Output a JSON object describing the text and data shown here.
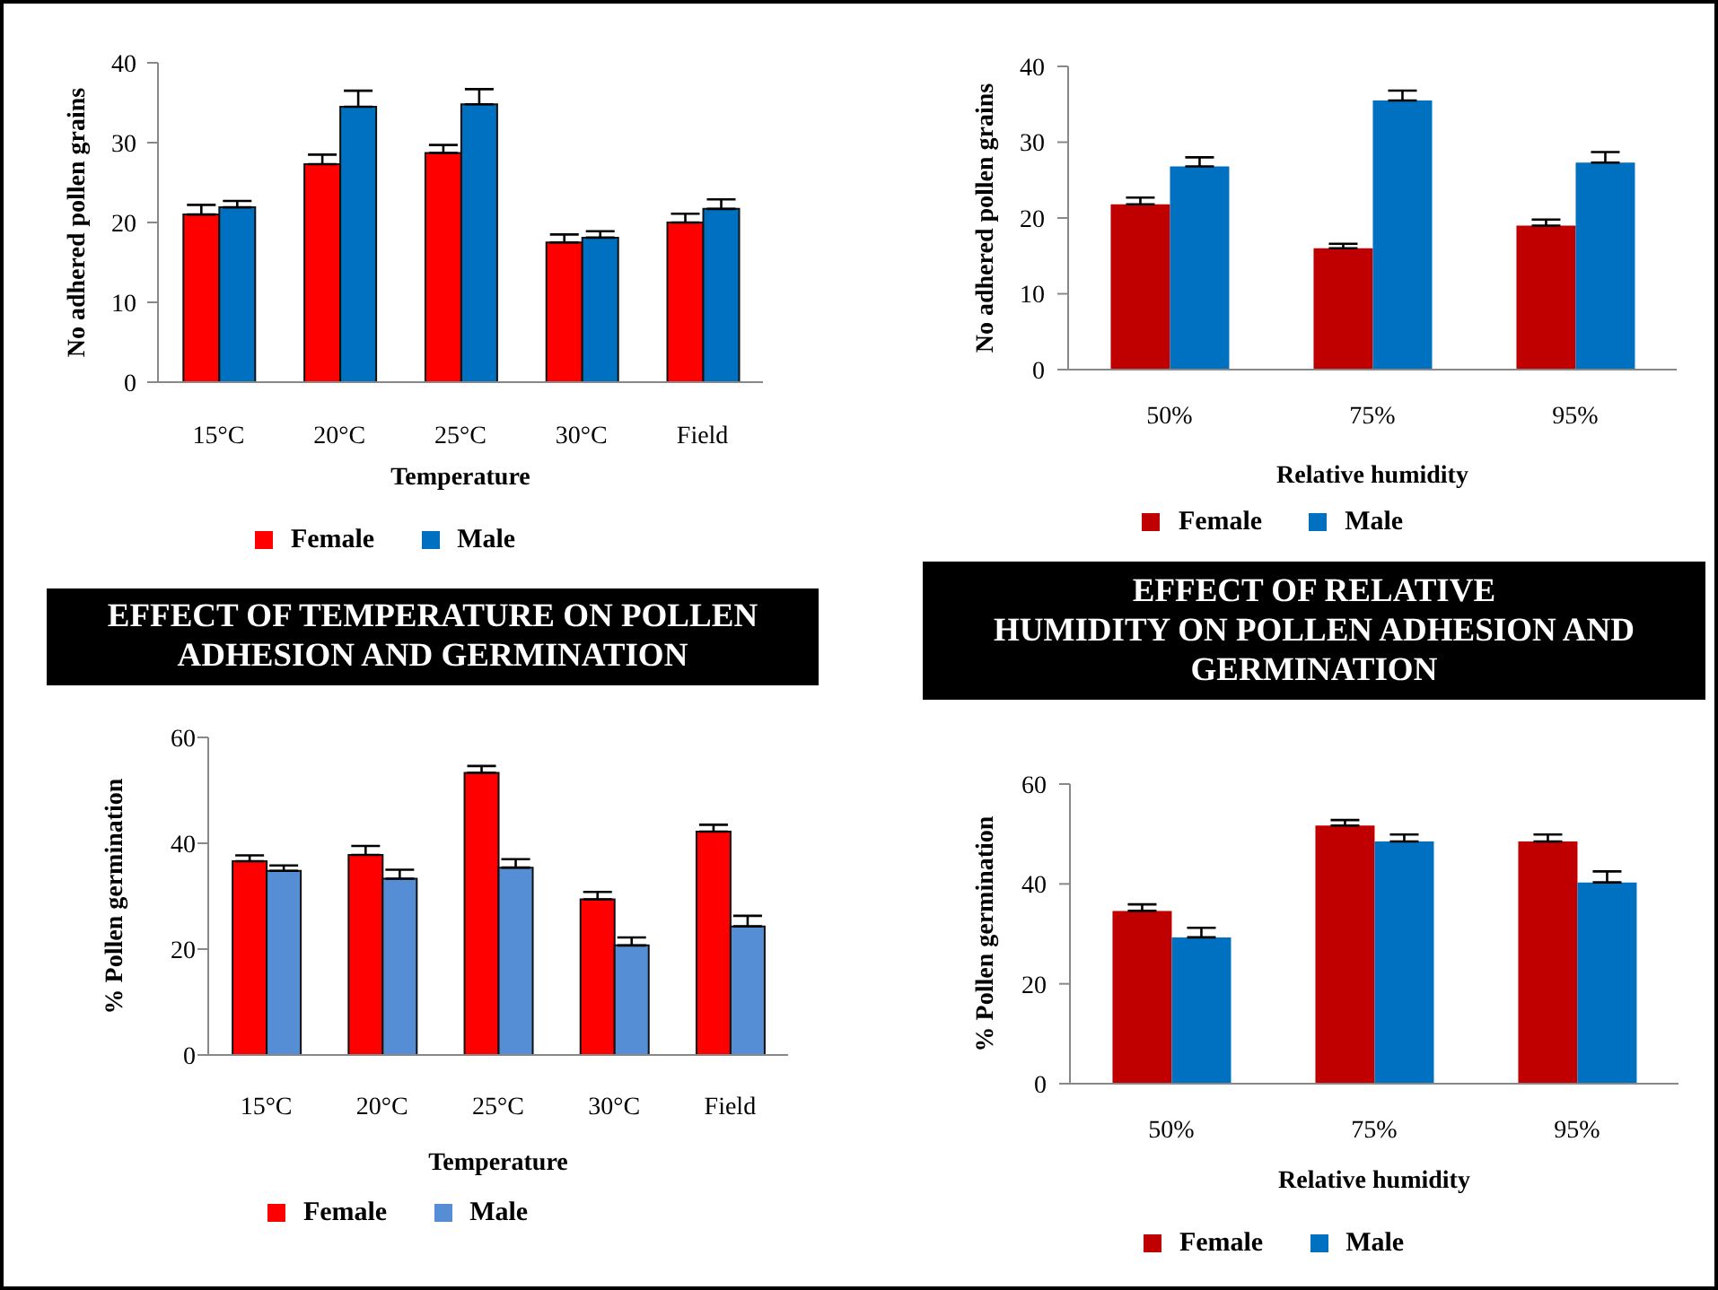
{
  "chart_data": [
    {
      "type": "bar",
      "categories": [
        "15°C",
        "20°C",
        "25°C",
        "30°C",
        "Field"
      ],
      "series": [
        {
          "name": "Female",
          "color": "#ff0000",
          "values": [
            21.0,
            27.3,
            28.7,
            17.5,
            20.0
          ],
          "errors": [
            [
              21.0,
              22.2
            ],
            [
              27.3,
              28.5
            ],
            [
              28.7,
              29.7
            ],
            [
              17.5,
              18.5
            ],
            [
              20.0,
              21.1
            ]
          ]
        },
        {
          "name": "Male",
          "color": "#0070c0",
          "values": [
            21.9,
            34.5,
            34.8,
            18.1,
            21.7
          ],
          "errors": [
            [
              21.9,
              22.7
            ],
            [
              34.5,
              36.5
            ],
            [
              34.8,
              36.7
            ],
            [
              18.1,
              18.9
            ],
            [
              21.7,
              22.9
            ]
          ]
        }
      ],
      "xlabel": "Temperature",
      "ylabel": "No adhered pollen grains",
      "ylim": [
        0,
        40
      ],
      "yticks": [
        0,
        10,
        20,
        30,
        40
      ],
      "legend": "bottom"
    },
    {
      "type": "bar",
      "categories": [
        "50%",
        "75%",
        "95%"
      ],
      "series": [
        {
          "name": "Female",
          "color": "#c00000",
          "values": [
            21.8,
            16.0,
            19.0
          ],
          "errors": [
            [
              21.8,
              22.7
            ],
            [
              16.0,
              16.6
            ],
            [
              19.0,
              19.8
            ]
          ]
        },
        {
          "name": "Male",
          "color": "#0070c0",
          "values": [
            26.8,
            35.5,
            27.3
          ],
          "errors": [
            [
              26.8,
              28.0
            ],
            [
              35.5,
              36.8
            ],
            [
              27.3,
              28.7
            ]
          ]
        }
      ],
      "xlabel": "Relative humidity",
      "ylabel": "No adhered pollen grains",
      "ylim": [
        0,
        40
      ],
      "yticks": [
        0,
        10,
        20,
        30,
        40
      ],
      "legend": "bottom"
    },
    {
      "type": "bar",
      "title": "EFFECT OF TEMPERATURE ON POLLEN ADHESION AND GERMINATION",
      "categories": [
        "15°C",
        "20°C",
        "25°C",
        "30°C",
        "Field"
      ],
      "series": [
        {
          "name": "Female",
          "color": "#ff0000",
          "values": [
            36.6,
            37.8,
            53.3,
            29.4,
            42.2
          ],
          "errors": [
            [
              36.6,
              37.7
            ],
            [
              37.8,
              39.5
            ],
            [
              53.3,
              54.6
            ],
            [
              29.4,
              30.8
            ],
            [
              42.2,
              43.5
            ]
          ]
        },
        {
          "name": "Male",
          "color": "#558ed5",
          "values": [
            34.8,
            33.3,
            35.4,
            20.7,
            24.3
          ],
          "errors": [
            [
              34.8,
              35.8
            ],
            [
              33.3,
              35.0
            ],
            [
              35.4,
              37.0
            ],
            [
              20.7,
              22.2
            ],
            [
              24.3,
              26.3
            ]
          ]
        }
      ],
      "xlabel": "Temperature",
      "ylabel": "% Pollen germination",
      "ylim": [
        0,
        60
      ],
      "yticks": [
        0,
        20,
        40,
        60
      ],
      "legend": "bottom"
    },
    {
      "type": "bar",
      "title": "EFFECT OF RELATIVE\nHUMIDITY ON POLLEN ADHESION AND\nGERMINATION",
      "categories": [
        "50%",
        "75%",
        "95%"
      ],
      "series": [
        {
          "name": "Female",
          "color": "#c00000",
          "values": [
            34.6,
            51.7,
            48.5
          ],
          "errors": [
            [
              34.6,
              35.9
            ],
            [
              51.7,
              52.8
            ],
            [
              48.5,
              49.9
            ]
          ]
        },
        {
          "name": "Male",
          "color": "#0070c0",
          "values": [
            29.3,
            48.5,
            40.3
          ],
          "errors": [
            [
              29.3,
              31.2
            ],
            [
              48.5,
              49.9
            ],
            [
              40.3,
              42.5
            ]
          ]
        }
      ],
      "xlabel": "Relative humidity",
      "ylabel": "% Pollen germination",
      "ylim": [
        0,
        60
      ],
      "yticks": [
        0,
        20,
        40,
        60
      ],
      "legend": "bottom"
    }
  ]
}
